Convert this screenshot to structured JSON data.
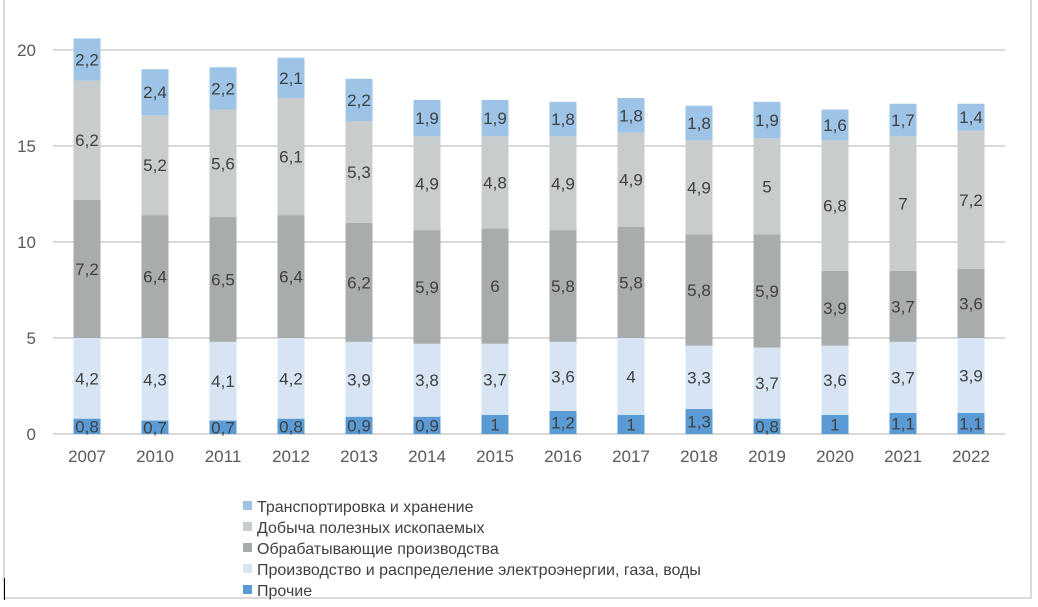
{
  "chart_data": {
    "type": "bar",
    "stacked": true,
    "categories": [
      "2007",
      "2010",
      "2011",
      "2012",
      "2013",
      "2014",
      "2015",
      "2016",
      "2017",
      "2018",
      "2019",
      "2020",
      "2021",
      "2022"
    ],
    "ylim": [
      0,
      20
    ],
    "yticks": [
      0,
      5,
      10,
      15,
      20
    ],
    "grid": true,
    "legend_position": "bottom",
    "series": [
      {
        "name": "Прочие",
        "color": "#5b9bd5",
        "values": [
          0.8,
          0.7,
          0.7,
          0.8,
          0.9,
          0.9,
          1,
          1.2,
          1,
          1.3,
          0.8,
          1,
          1.1,
          1.1
        ]
      },
      {
        "name": "Производство и распределение электроэнергии, газа, воды",
        "color": "#d6e4f3",
        "values": [
          4.2,
          4.3,
          4.1,
          4.2,
          3.9,
          3.8,
          3.7,
          3.6,
          4,
          3.3,
          3.7,
          3.6,
          3.7,
          3.9
        ]
      },
      {
        "name": "Обрабатывающие производства",
        "color": "#a9acac",
        "values": [
          7.2,
          6.4,
          6.5,
          6.4,
          6.2,
          5.9,
          6,
          5.8,
          5.8,
          5.8,
          5.9,
          3.9,
          3.7,
          3.6
        ]
      },
      {
        "name": "Добыча полезных ископаемых",
        "color": "#c8cccc",
        "values": [
          6.2,
          5.2,
          5.6,
          6.1,
          5.3,
          4.9,
          4.8,
          4.9,
          4.9,
          4.9,
          5,
          6.8,
          7,
          7.2
        ]
      },
      {
        "name": "Транспортировка и хранение",
        "color": "#9dc3e6",
        "values": [
          2.2,
          2.4,
          2.2,
          2.1,
          2.2,
          1.9,
          1.9,
          1.8,
          1.8,
          1.8,
          1.9,
          1.6,
          1.7,
          1.4
        ]
      }
    ],
    "legend_order": [
      4,
      3,
      2,
      1,
      0
    ]
  }
}
